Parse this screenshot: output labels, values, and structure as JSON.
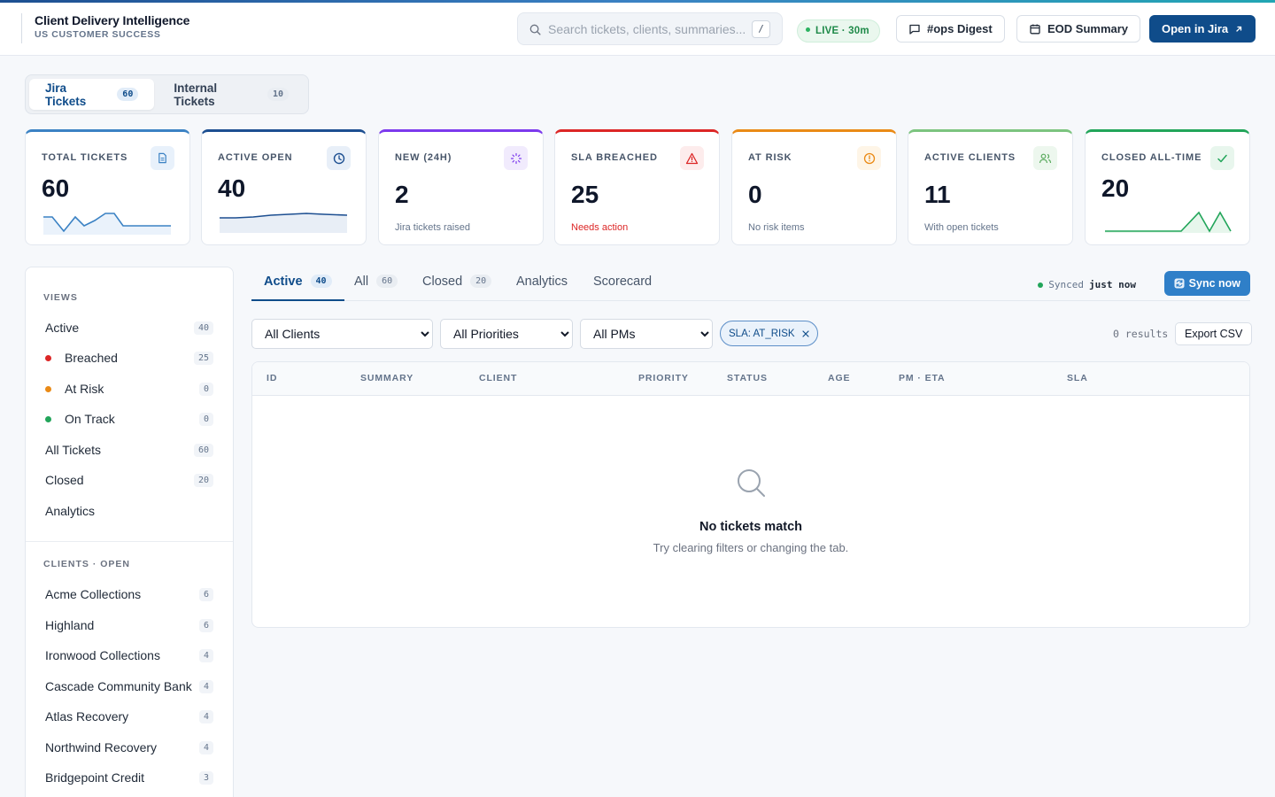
{
  "header": {
    "title": "Client Delivery Intelligence",
    "subtitle": "US CUSTOMER SUCCESS",
    "search_placeholder": "Search tickets, clients, summaries...",
    "search_shortcut": "/",
    "live_badge": "LIVE · 30m",
    "ops_digest": "#ops Digest",
    "eod_summary": "EOD Summary",
    "open_jira": "Open in Jira"
  },
  "ticket_tabs": [
    {
      "label": "Jira Tickets",
      "count": "60"
    },
    {
      "label": "Internal Tickets",
      "count": "10"
    }
  ],
  "kpis": [
    {
      "label": "TOTAL TICKETS",
      "value": "60",
      "sub": "",
      "color": "#3b82c4",
      "icon": "document-icon"
    },
    {
      "label": "ACTIVE OPEN",
      "value": "40",
      "sub": "",
      "color": "#1d4f91",
      "icon": "clock-icon"
    },
    {
      "label": "NEW (24H)",
      "value": "2",
      "sub": "Jira tickets raised",
      "color": "#7c3aed",
      "icon": "spinner-icon"
    },
    {
      "label": "SLA BREACHED",
      "value": "25",
      "sub": "Needs action",
      "color": "#dc2626",
      "icon": "warning-icon"
    },
    {
      "label": "AT RISK",
      "value": "0",
      "sub": "No risk items",
      "color": "#ea8a16",
      "icon": "alert-circle-icon"
    },
    {
      "label": "ACTIVE CLIENTS",
      "value": "11",
      "sub": "With open tickets",
      "color": "#7cc47f",
      "icon": "users-icon"
    },
    {
      "label": "CLOSED ALL-TIME",
      "value": "20",
      "sub": "",
      "color": "#22a55a",
      "icon": "check-icon"
    }
  ],
  "sidebar": {
    "views_label": "VIEWS",
    "views": [
      {
        "label": "Active",
        "count": "40",
        "dot": ""
      },
      {
        "label": "Breached",
        "count": "25",
        "dot": "#dc2626"
      },
      {
        "label": "At Risk",
        "count": "0",
        "dot": "#ea8a16"
      },
      {
        "label": "On Track",
        "count": "0",
        "dot": "#22a55a"
      },
      {
        "label": "All Tickets",
        "count": "60",
        "dot": ""
      },
      {
        "label": "Closed",
        "count": "20",
        "dot": ""
      },
      {
        "label": "Analytics",
        "count": "",
        "dot": ""
      }
    ],
    "clients_label": "CLIENTS · OPEN",
    "clients": [
      {
        "label": "Acme Collections",
        "count": "6"
      },
      {
        "label": "Highland",
        "count": "6"
      },
      {
        "label": "Ironwood Collections",
        "count": "4"
      },
      {
        "label": "Cascade Community Bank",
        "count": "4"
      },
      {
        "label": "Atlas Recovery",
        "count": "4"
      },
      {
        "label": "Northwind Recovery",
        "count": "4"
      },
      {
        "label": "Bridgepoint Credit",
        "count": "3"
      }
    ]
  },
  "main_tabs": [
    {
      "label": "Active",
      "count": "40"
    },
    {
      "label": "All",
      "count": "60"
    },
    {
      "label": "Closed",
      "count": "20"
    },
    {
      "label": "Analytics",
      "count": ""
    },
    {
      "label": "Scorecard",
      "count": ""
    }
  ],
  "sync": {
    "prefix": "Synced",
    "when": "just now",
    "button": "Sync now"
  },
  "filters": {
    "client": "All Clients",
    "priority": "All Priorities",
    "pm": "All PMs",
    "chip": "SLA: AT_RISK",
    "results": "0 results",
    "export": "Export CSV"
  },
  "table": {
    "columns": [
      "ID",
      "SUMMARY",
      "CLIENT",
      "PRIORITY",
      "STATUS",
      "AGE",
      "PM · ETA",
      "SLA"
    ],
    "empty_title": "No tickets match",
    "empty_sub": "Try clearing filters or changing the tab."
  }
}
